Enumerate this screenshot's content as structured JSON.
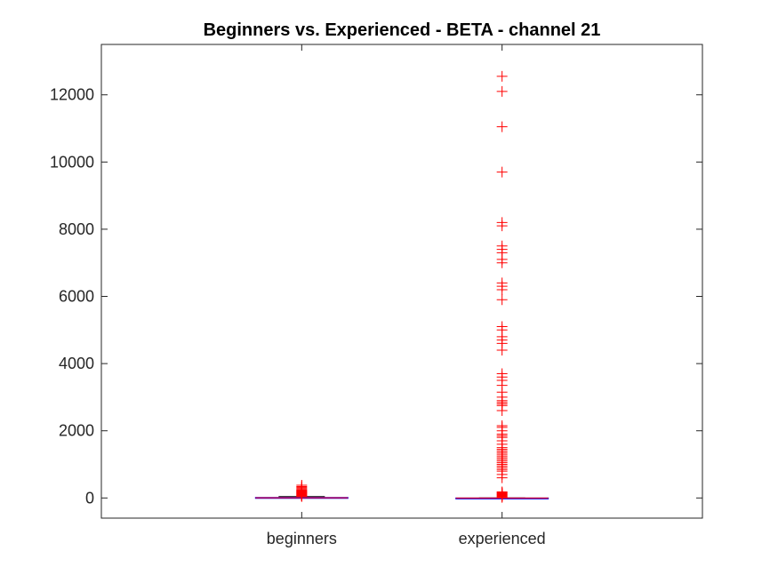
{
  "chart_data": {
    "type": "box",
    "title": "Beginners vs. Experienced - BETA - channel 21",
    "xlabel": "",
    "ylabel": "",
    "ylim": [
      -600,
      13500
    ],
    "yticks": [
      0,
      2000,
      4000,
      6000,
      8000,
      10000,
      12000
    ],
    "grid": false,
    "colors": {
      "box": "#0000ff",
      "median": "#ff0000",
      "outlier": "#ff0000",
      "axis": "#262626"
    },
    "categories": [
      "beginners",
      "experienced"
    ],
    "boxes": [
      {
        "name": "beginners",
        "q1": 0,
        "median": 5,
        "q3": 15,
        "whisker_low": 0,
        "whisker_high": 40,
        "outliers": [
          45,
          55,
          65,
          80,
          95,
          110,
          125,
          140,
          155,
          170,
          185,
          200,
          215,
          230,
          250,
          280,
          310,
          340,
          380
        ]
      },
      {
        "name": "experienced",
        "q1": 0,
        "median": 0,
        "q3": 0,
        "whisker_low": 0,
        "whisker_high": 0,
        "outliers": [
          20,
          40,
          60,
          80,
          100,
          120,
          140,
          160,
          180,
          600,
          700,
          800,
          850,
          900,
          950,
          1000,
          1050,
          1100,
          1150,
          1200,
          1250,
          1300,
          1350,
          1400,
          1450,
          1500,
          1600,
          1700,
          1800,
          1850,
          1900,
          2000,
          2100,
          2150,
          2600,
          2750,
          2800,
          2850,
          2900,
          3000,
          3150,
          3350,
          3500,
          3600,
          3700,
          4400,
          4600,
          4700,
          4800,
          5000,
          5100,
          5900,
          6200,
          6300,
          6400,
          7000,
          7100,
          7300,
          7400,
          7500,
          8100,
          8200,
          9700,
          11050,
          12100,
          12550
        ]
      }
    ]
  }
}
